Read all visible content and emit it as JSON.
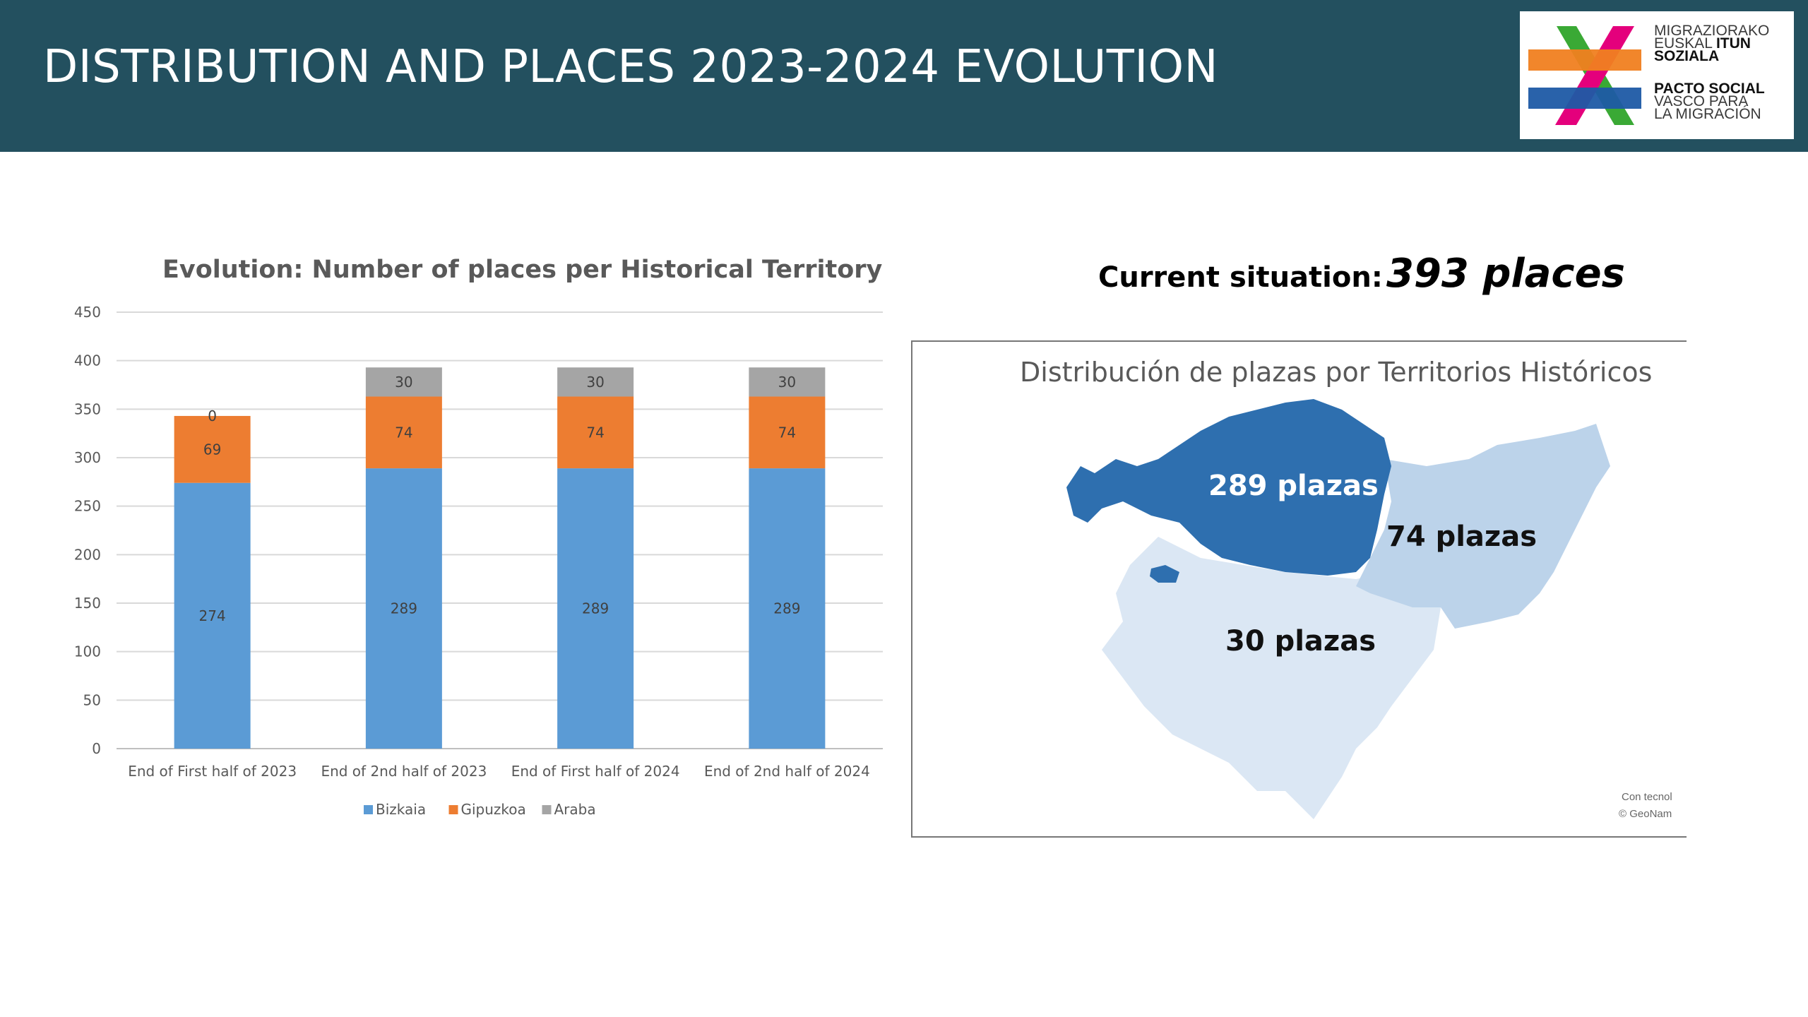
{
  "header": {
    "title": "DISTRIBUTION AND PLACES 2023-2024 EVOLUTION",
    "logo": {
      "lines": [
        "MIGRAZIORAKO",
        "EUSKAL",
        "ITUN",
        "SOZIALA",
        "PACTO SOCIAL",
        "VASCO PARA",
        "LA MIGRACIÓN"
      ],
      "colors": [
        "#f07f20",
        "#3aa935",
        "#e4007c",
        "#1e5aa5"
      ]
    }
  },
  "current": {
    "label": "Current situation:",
    "value": "393 places"
  },
  "chart_data": {
    "type": "bar",
    "stacked": true,
    "title": "Evolution: Number of places per Historical Territory",
    "categories": [
      "End of First half of 2023",
      "End of 2nd half of 2023",
      "End of First half of 2024",
      "End of 2nd half of 2024"
    ],
    "series": [
      {
        "name": "Bizkaia",
        "values": [
          274,
          289,
          289,
          289
        ],
        "color": "#5b9bd5"
      },
      {
        "name": "Gipuzkoa",
        "values": [
          69,
          74,
          74,
          74
        ],
        "color": "#ed7d31"
      },
      {
        "name": "Araba",
        "values": [
          0,
          30,
          30,
          30
        ],
        "color": "#a5a5a5"
      }
    ],
    "ylim": [
      0,
      450
    ],
    "yticks": [
      0,
      50,
      100,
      150,
      200,
      250,
      300,
      350,
      400,
      450
    ],
    "grid": true,
    "legend": "bottom"
  },
  "map": {
    "title": "Distribución de plazas por Territorios Históricos",
    "labels": {
      "bizkaia": "289 plazas",
      "gipuzkoa": "74 plazas",
      "araba": "30 plazas"
    },
    "credit": [
      "Con tecnol",
      "© GeoNam"
    ],
    "colors": {
      "bizkaia": "#2e6faf",
      "gipuzkoa": "#bcd3ea",
      "araba": "#dbe7f4"
    }
  }
}
